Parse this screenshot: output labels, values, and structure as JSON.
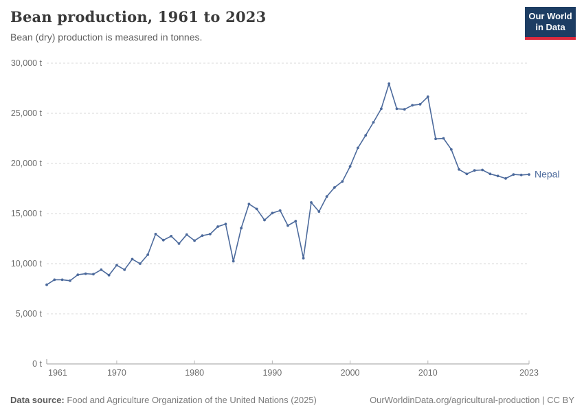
{
  "header": {
    "title": "Bean production, 1961 to 2023",
    "subtitle": "Bean (dry) production is measured in tonnes."
  },
  "logo": {
    "line1": "Our World",
    "line2": "in Data",
    "bg_color": "#1d3d63",
    "bar_color": "#dc2a3d"
  },
  "chart_data": {
    "type": "line",
    "title": "Bean production, 1961 to 2023",
    "entity_label": "Nepal",
    "y_unit": "t",
    "xlim": [
      1961,
      2023
    ],
    "ylim": [
      0,
      30000
    ],
    "x_ticks": [
      1961,
      1970,
      1980,
      1990,
      2000,
      2010,
      2023
    ],
    "y_ticks": [
      0,
      5000,
      10000,
      15000,
      20000,
      25000,
      30000
    ],
    "grid": "horizontal-dashed",
    "line_color": "#4c6a9c",
    "series": [
      {
        "name": "Nepal",
        "color": "#4c6a9c",
        "x": [
          1961,
          1962,
          1963,
          1964,
          1965,
          1966,
          1967,
          1968,
          1969,
          1970,
          1971,
          1972,
          1973,
          1974,
          1975,
          1976,
          1977,
          1978,
          1979,
          1980,
          1981,
          1982,
          1983,
          1984,
          1985,
          1986,
          1987,
          1988,
          1989,
          1990,
          1991,
          1992,
          1993,
          1994,
          1995,
          1996,
          1997,
          1998,
          1999,
          2000,
          2001,
          2002,
          2003,
          2004,
          2005,
          2006,
          2007,
          2008,
          2009,
          2010,
          2011,
          2012,
          2013,
          2014,
          2015,
          2016,
          2017,
          2018,
          2019,
          2020,
          2021,
          2022,
          2023
        ],
        "values": [
          7900,
          8400,
          8400,
          8300,
          8900,
          9000,
          8950,
          9400,
          8850,
          9850,
          9400,
          10450,
          10000,
          10900,
          12950,
          12350,
          12750,
          12000,
          12900,
          12300,
          12800,
          12950,
          13700,
          13950,
          10250,
          13550,
          15950,
          15450,
          14350,
          15050,
          15300,
          13800,
          14250,
          10550,
          16100,
          15200,
          16700,
          17600,
          18200,
          19700,
          21550,
          22800,
          24100,
          25450,
          27950,
          25450,
          25400,
          25800,
          25900,
          26650,
          22450,
          22500,
          21400,
          19400,
          18950,
          19300,
          19350,
          18950,
          18750,
          18500,
          18900,
          18850,
          18900
        ]
      }
    ]
  },
  "footer": {
    "source_label": "Data source:",
    "source_text": " Food and Agriculture Organization of the United Nations (2025)",
    "credit": "OurWorldinData.org/agricultural-production | CC BY"
  }
}
